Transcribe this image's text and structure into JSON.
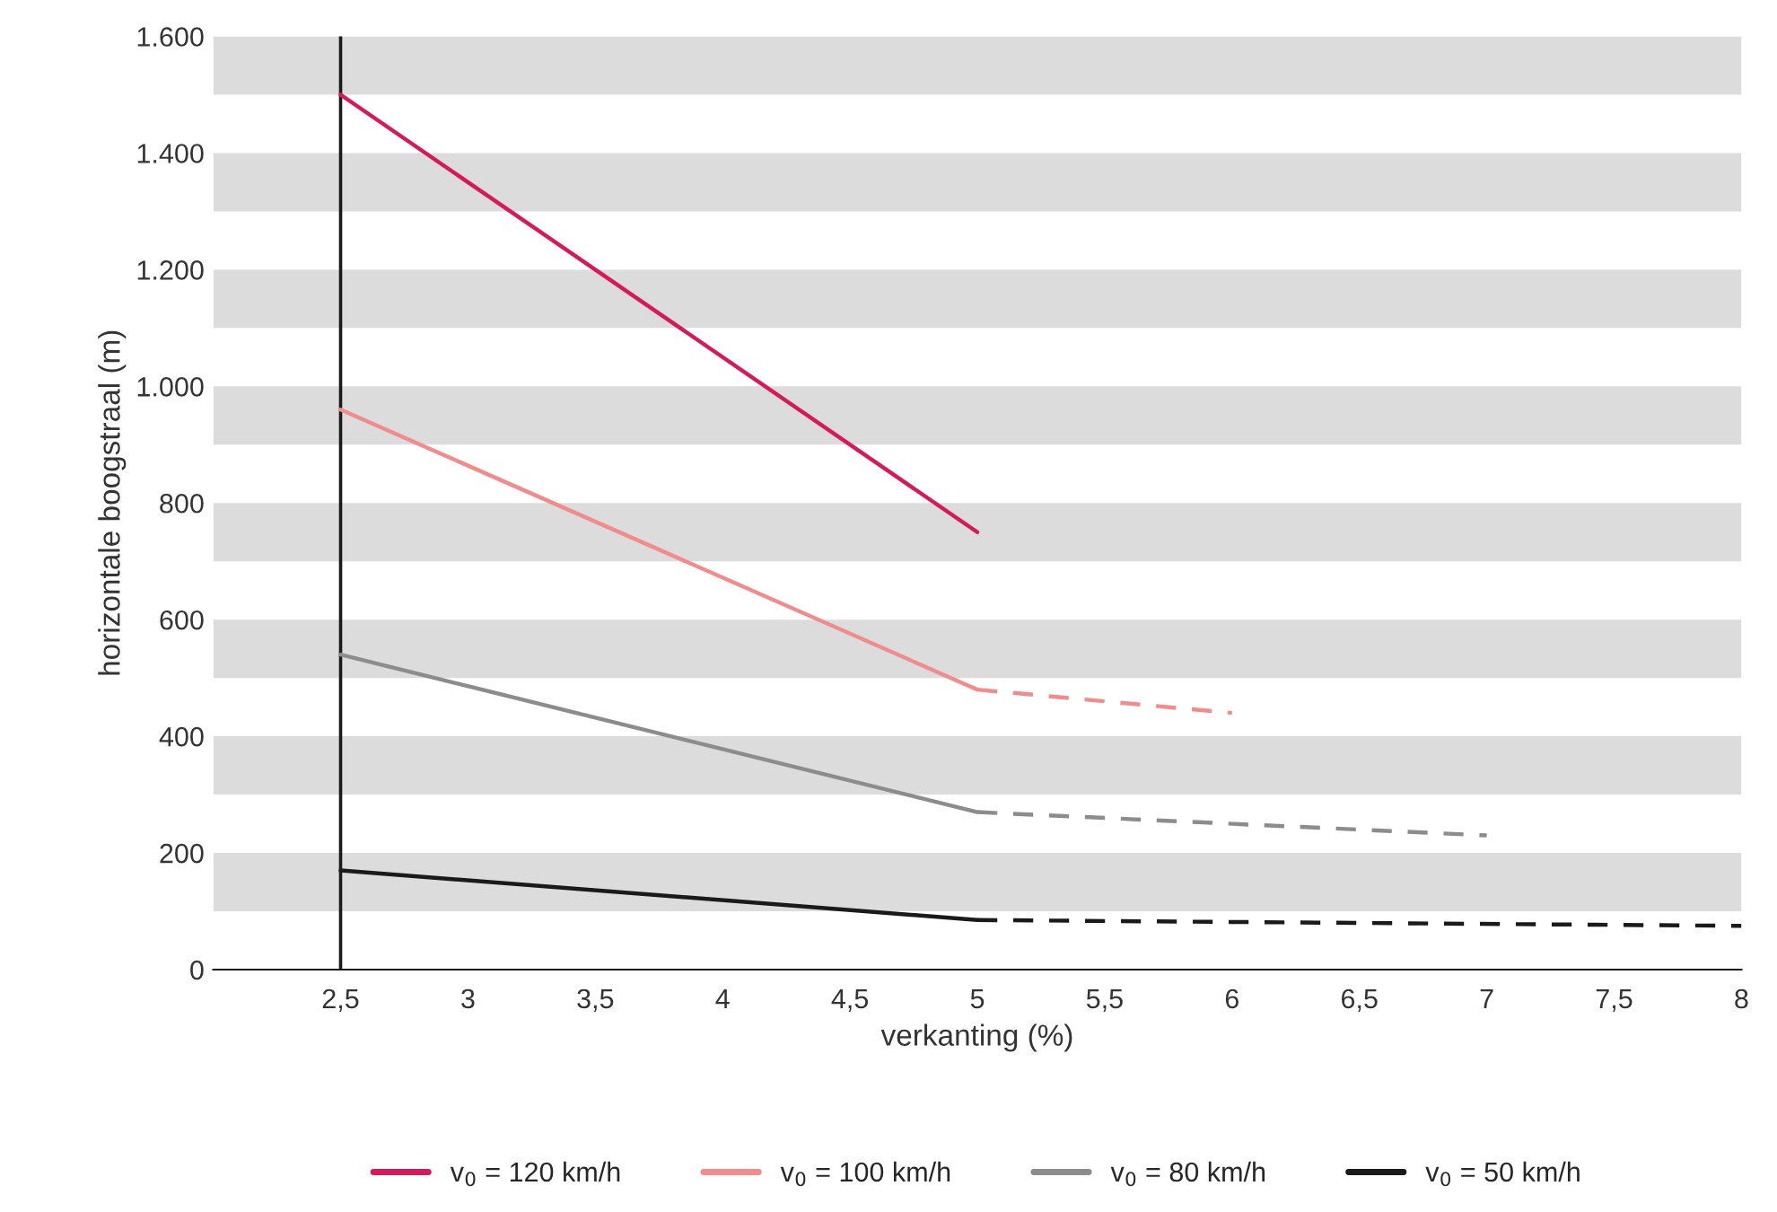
{
  "chart_data": {
    "type": "line",
    "xlabel": "verkanting (%)",
    "ylabel": "horizontale boogstraal (m)",
    "xlim": [
      2,
      8
    ],
    "ylim": [
      0,
      1600
    ],
    "xticks": [
      {
        "value": 2.5,
        "label": "2,5"
      },
      3,
      {
        "value": 3.5,
        "label": "3,5"
      },
      4,
      {
        "value": 4.5,
        "label": "4,5"
      },
      5,
      {
        "value": 5.5,
        "label": "5,5"
      },
      6,
      {
        "value": 6.5,
        "label": "6,5"
      },
      7,
      {
        "value": 7.5,
        "label": "7,5"
      },
      8
    ],
    "yticks": [
      0,
      200,
      400,
      600,
      800,
      {
        "value": 1000,
        "label": "1.000"
      },
      {
        "value": 1200,
        "label": "1.200"
      },
      {
        "value": 1400,
        "label": "1.400"
      },
      {
        "value": 1600,
        "label": "1.600"
      }
    ],
    "grid": false,
    "legend": "bottom",
    "series": [
      {
        "name": "v$_{0}$ = 120 km/h",
        "color": "#d6195a",
        "x": [
          2.5,
          5
        ],
        "values": [
          1500,
          750
        ]
      },
      {
        "name": "v$_{0}$ = 100 km/h",
        "color": "#f08c8c",
        "x": [
          2.5,
          5
        ],
        "values": [
          960,
          480
        ]
      },
      {
        "color": "#f08c8c",
        "x": [
          5,
          6
        ],
        "values": [
          480,
          440
        ],
        "line_style": "dashed"
      },
      {
        "name": "v$_{0}$ = 80 km/h",
        "color": "#8c8c8c",
        "x": [
          2.5,
          5
        ],
        "values": [
          540,
          270
        ]
      },
      {
        "color": "#8c8c8c",
        "x": [
          5,
          7
        ],
        "values": [
          270,
          230
        ],
        "line_style": "dashed"
      },
      {
        "name": "v$_{0}$ = 50 km/h",
        "color": "#1a1a1a",
        "x": [
          2.5,
          5
        ],
        "values": [
          170,
          85
        ]
      },
      {
        "color": "#1a1a1a",
        "x": [
          5,
          8
        ],
        "values": [
          85,
          75
        ],
        "line_style": "dashed"
      }
    ],
    "ref_lines": [
      {
        "axis": "x",
        "value": 2.5,
        "color": "#1a1a1a"
      }
    ],
    "bands": [
      {
        "axis": "y",
        "from": 100,
        "to": 200,
        "color": "#dcdcdc"
      },
      {
        "axis": "y",
        "from": 300,
        "to": 400,
        "color": "#dcdcdc"
      },
      {
        "axis": "y",
        "from": 500,
        "to": 600,
        "color": "#dcdcdc"
      },
      {
        "axis": "y",
        "from": 700,
        "to": 800,
        "color": "#dcdcdc"
      },
      {
        "axis": "y",
        "from": 900,
        "to": 1000,
        "color": "#dcdcdc"
      },
      {
        "axis": "y",
        "from": 1100,
        "to": 1200,
        "color": "#dcdcdc"
      },
      {
        "axis": "y",
        "from": 1300,
        "to": 1400,
        "color": "#dcdcdc"
      },
      {
        "axis": "y",
        "from": 1500,
        "to": 1600,
        "color": "#dcdcdc"
      }
    ]
  }
}
